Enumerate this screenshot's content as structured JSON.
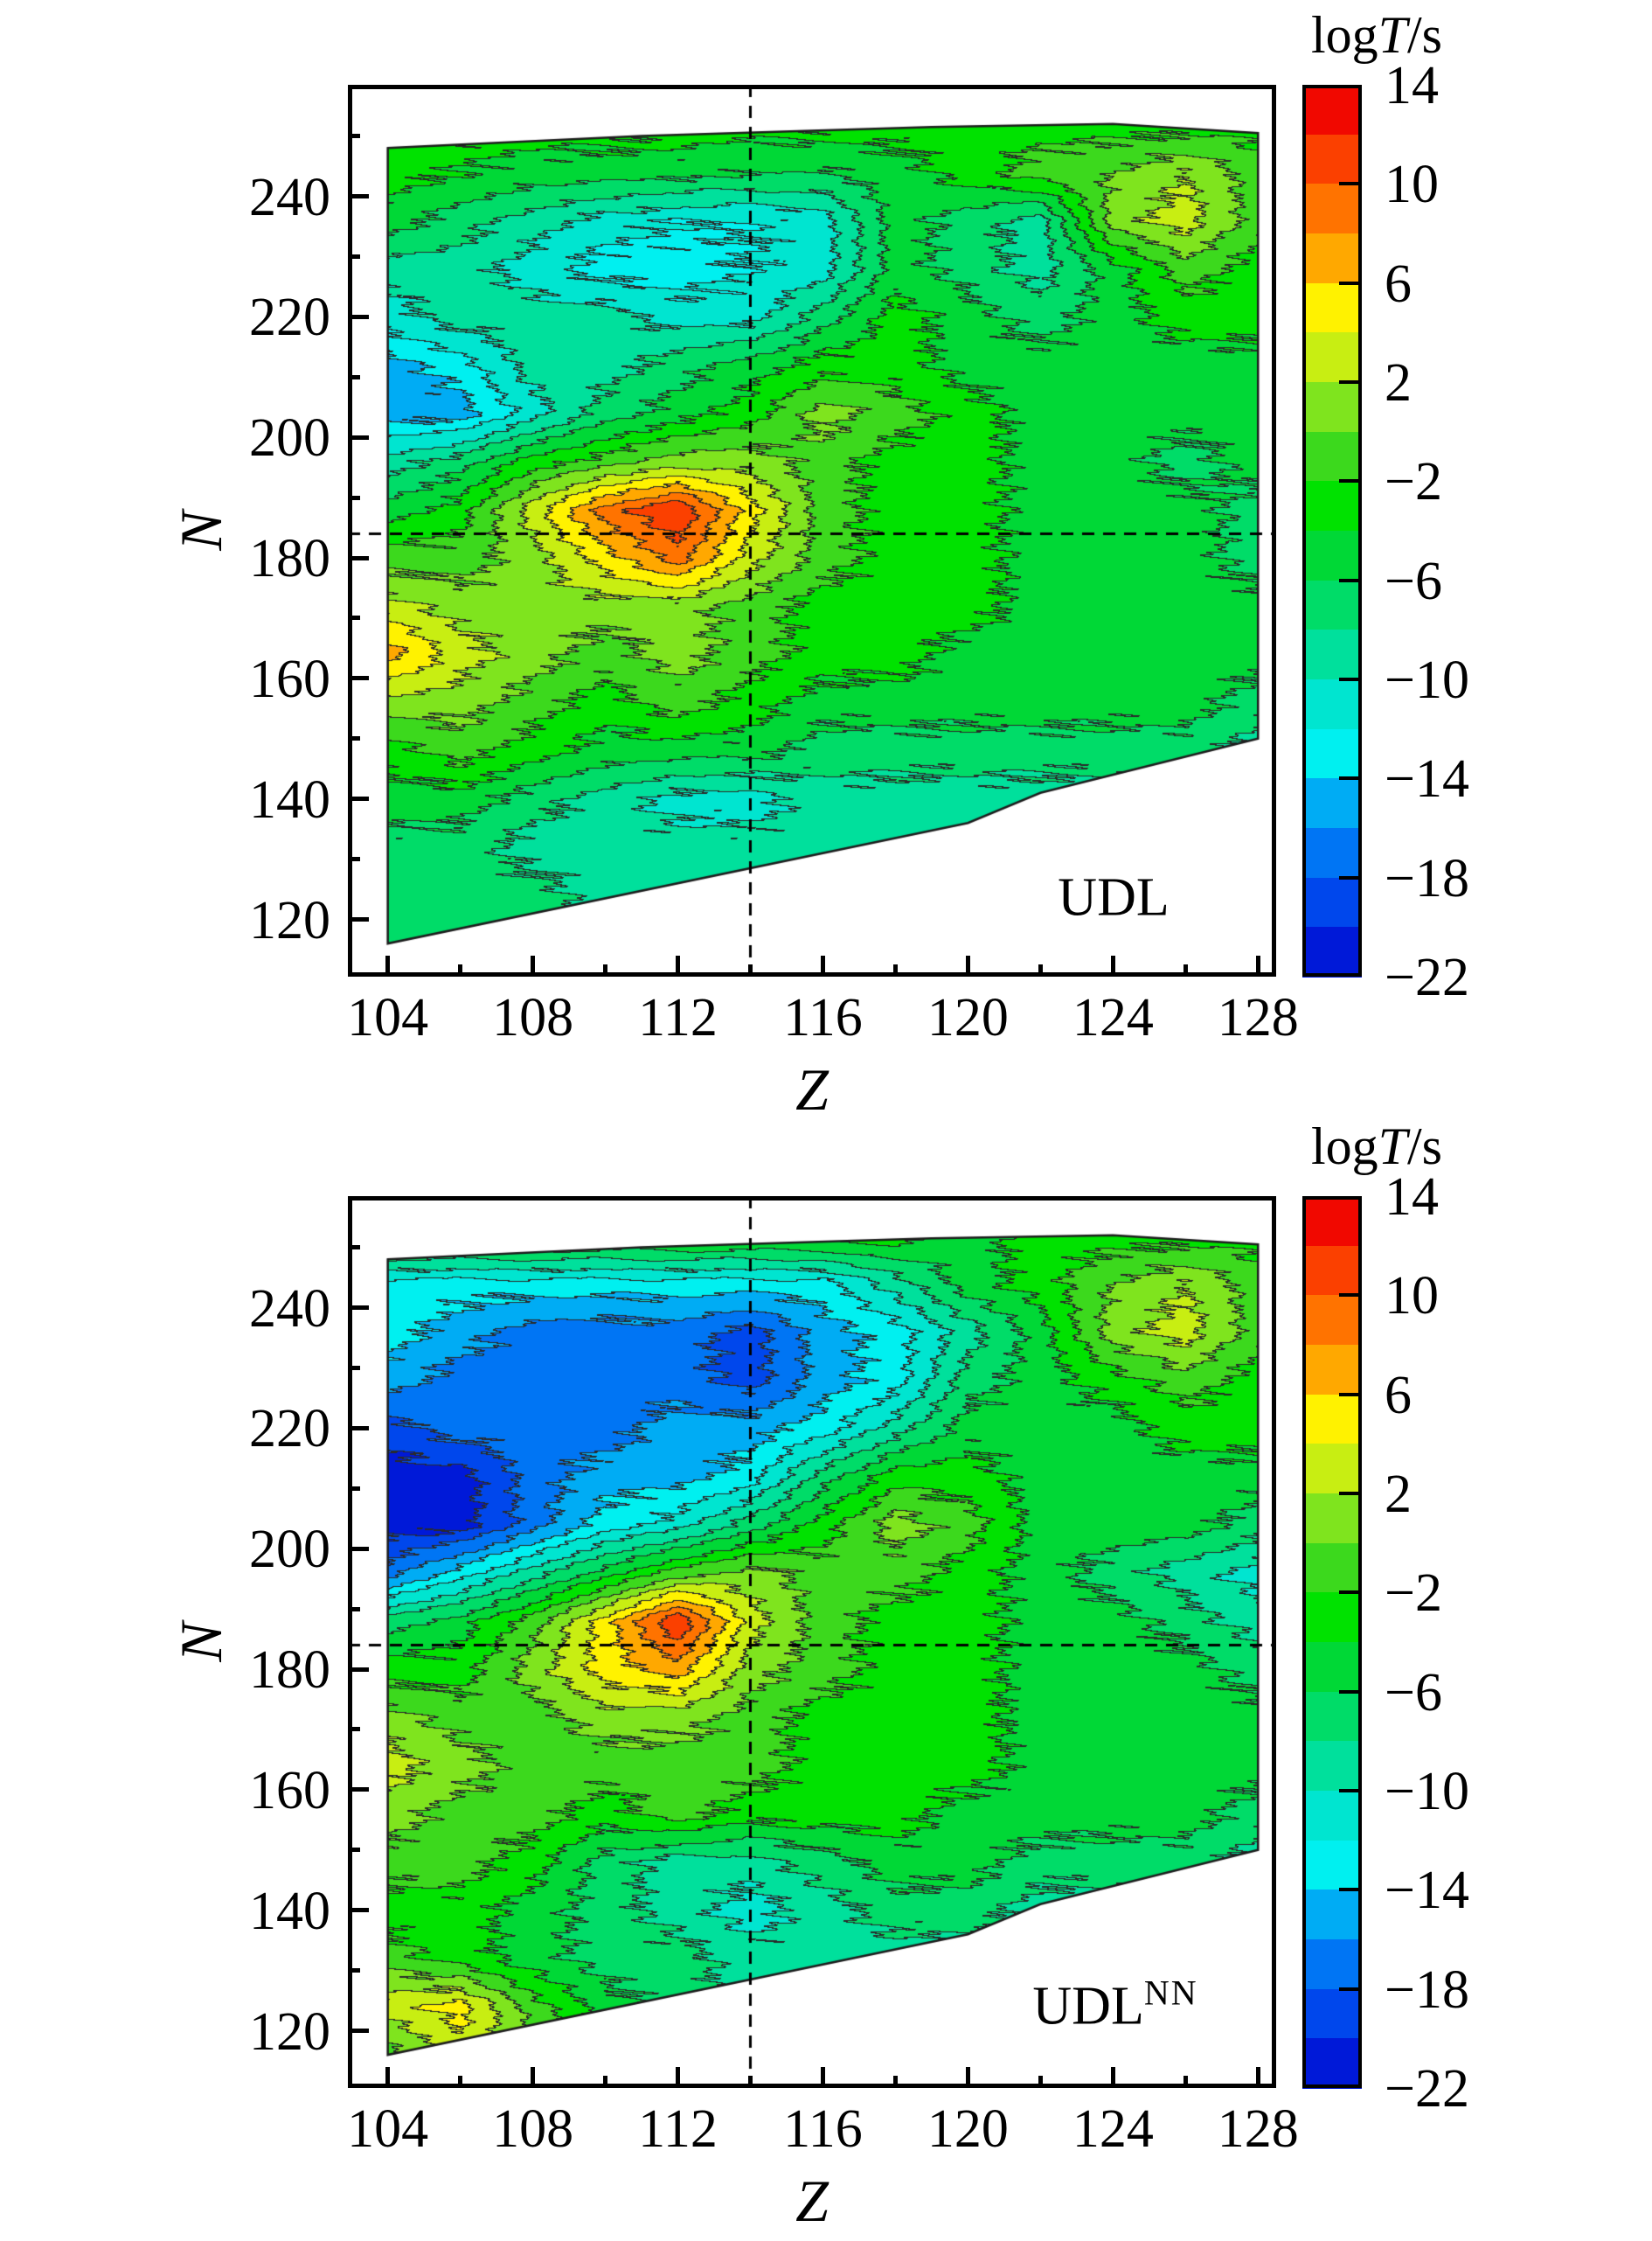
{
  "figure": {
    "description": "Alpha-decay half-life contour maps",
    "background": "#ffffff"
  },
  "colorbar": {
    "title": {
      "log": "log",
      "T": "T",
      "unit": "/s"
    },
    "ticks": [
      14,
      10,
      6,
      2,
      -2,
      -6,
      -10,
      -14,
      -18,
      -22
    ],
    "value_range": [
      -22,
      14
    ]
  },
  "color_scale": {
    "band_step": 2,
    "bands": [
      {
        "min": -22,
        "max": -20,
        "color": "#0019d8"
      },
      {
        "min": -20,
        "max": -18,
        "color": "#0047ec"
      },
      {
        "min": -18,
        "max": -16,
        "color": "#0075f4"
      },
      {
        "min": -16,
        "max": -14,
        "color": "#00acf4"
      },
      {
        "min": -14,
        "max": -12,
        "color": "#00f0f0"
      },
      {
        "min": -12,
        "max": -10,
        "color": "#00e5d0"
      },
      {
        "min": -10,
        "max": -8,
        "color": "#00e09c"
      },
      {
        "min": -8,
        "max": -6,
        "color": "#00dc68"
      },
      {
        "min": -6,
        "max": -4,
        "color": "#00d836"
      },
      {
        "min": -4,
        "max": -2,
        "color": "#00e200"
      },
      {
        "min": -2,
        "max": 0,
        "color": "#3cd91d"
      },
      {
        "min": 0,
        "max": 2,
        "color": "#7fe41e"
      },
      {
        "min": 2,
        "max": 4,
        "color": "#c8ee12"
      },
      {
        "min": 4,
        "max": 6,
        "color": "#fff200"
      },
      {
        "min": 6,
        "max": 8,
        "color": "#ffa800"
      },
      {
        "min": 8,
        "max": 10,
        "color": "#ff7300"
      },
      {
        "min": 10,
        "max": 12,
        "color": "#fb4000"
      },
      {
        "min": 12,
        "max": 14,
        "color": "#f10800"
      }
    ],
    "contour_line_color": "#2a2a2a"
  },
  "panels": [
    {
      "label": "UDL",
      "label_sup": "",
      "x_label": "Z",
      "y_label": "N",
      "x_ticks": [
        104,
        108,
        112,
        116,
        120,
        124,
        128
      ],
      "x_minor_ticks": [
        106,
        110,
        114,
        118,
        122,
        126
      ],
      "y_ticks": [
        120,
        140,
        160,
        180,
        200,
        220,
        240
      ],
      "y_minor_ticks": [
        130,
        150,
        170,
        190,
        210,
        230,
        250
      ]
    },
    {
      "label": "UDL",
      "label_sup": "NN",
      "x_label": "Z",
      "y_label": "N",
      "x_ticks": [
        104,
        108,
        112,
        116,
        120,
        124,
        128
      ],
      "x_minor_ticks": [
        106,
        110,
        114,
        118,
        122,
        126
      ],
      "y_ticks": [
        120,
        140,
        160,
        180,
        200,
        220,
        240
      ],
      "y_minor_ticks": [
        130,
        150,
        170,
        190,
        210,
        230,
        250
      ]
    }
  ],
  "chart_data": [
    {
      "type": "heatmap",
      "title": "UDL",
      "xlabel": "Z",
      "ylabel": "N",
      "zlabel": "logT/s",
      "xlim": [
        102.9,
        128.5
      ],
      "ylim": [
        110.5,
        258.5
      ],
      "zlim": [
        -22,
        14
      ],
      "band_step": 2,
      "dashed_lines": {
        "Z": 114,
        "N": 184
      },
      "region_polygon": [
        [
          104,
          248
        ],
        [
          111,
          250
        ],
        [
          119,
          251.5
        ],
        [
          124,
          252
        ],
        [
          128,
          250.5
        ],
        [
          128,
          150
        ],
        [
          122,
          141
        ],
        [
          120,
          136
        ],
        [
          104,
          116
        ]
      ],
      "grid_Z": [
        104,
        106,
        108,
        110,
        112,
        114,
        116,
        118,
        120,
        122,
        124,
        126,
        128
      ],
      "grid_N": [
        252,
        244,
        236,
        228,
        220,
        212,
        204,
        196,
        188,
        180,
        172,
        164,
        156,
        148,
        140,
        132,
        124,
        116
      ],
      "values_logT": [
        [
          -3,
          -3,
          -3,
          -3,
          -3,
          -3,
          -3,
          -3,
          -3,
          -3,
          -3,
          -3,
          -3
        ],
        [
          -3,
          -4,
          -5,
          -5,
          -5,
          -6,
          -6,
          -5,
          -3,
          -1,
          0,
          2,
          -1
        ],
        [
          -5,
          -7,
          -9,
          -11,
          -12,
          -12,
          -11,
          -5,
          -7,
          -9,
          1,
          3,
          -1
        ],
        [
          -9,
          -9,
          -11,
          -13,
          -13,
          -12,
          -11,
          -5,
          -7,
          -9,
          -5,
          -1,
          -3
        ],
        [
          -11,
          -9,
          -9,
          -9,
          -11,
          -11,
          -7,
          -3,
          -5,
          -7,
          -5,
          -3,
          -3
        ],
        [
          -15,
          -13,
          -9,
          -9,
          -7,
          -5,
          -3,
          -3,
          -5,
          -5,
          -5,
          -5,
          -5
        ],
        [
          -15,
          -15,
          -11,
          -7,
          -5,
          -3,
          1,
          -1,
          -3,
          -5,
          -5,
          -5,
          -5
        ],
        [
          -9,
          -7,
          -3,
          -1,
          1,
          1,
          -1,
          -3,
          -3,
          -5,
          -5,
          -7,
          -5
        ],
        [
          -5,
          -3,
          3,
          9,
          12,
          5,
          -1,
          -3,
          -3,
          -5,
          -5,
          -5,
          -7
        ],
        [
          -1,
          -1,
          1,
          5,
          9,
          3,
          -1,
          -3,
          -3,
          -5,
          -5,
          -5,
          -7
        ],
        [
          3,
          1,
          1,
          1,
          1,
          -1,
          -3,
          -3,
          -3,
          -5,
          -5,
          -5,
          -5
        ],
        [
          7,
          3,
          1,
          -1,
          1,
          -1,
          -3,
          -3,
          -5,
          -5,
          -5,
          -5,
          -5
        ],
        [
          1,
          1,
          -1,
          -3,
          -1,
          -3,
          -5,
          -5,
          -5,
          -5,
          -5,
          -5,
          -7
        ],
        [
          -3,
          -1,
          -3,
          -5,
          -5,
          -5,
          -7,
          -7,
          -7,
          -7,
          -7,
          -7,
          -9
        ],
        [
          -5,
          -5,
          -7,
          -9,
          -11,
          -11,
          -9,
          -9,
          -9,
          -9,
          -9,
          -9,
          -9
        ],
        [
          -7,
          -7,
          -9,
          -9,
          -9,
          -9,
          -9,
          -9,
          -9,
          -9,
          -9,
          -9,
          -9
        ],
        [
          -7,
          -7,
          -7,
          -9,
          -9,
          -9,
          -9,
          -9,
          -9,
          -9,
          -9,
          -9,
          -9
        ],
        [
          -7,
          -7,
          -7,
          -7,
          -9,
          -9,
          -9,
          -9,
          -9,
          -9,
          -9,
          -9,
          -9
        ]
      ],
      "annotations": [
        {
          "text": "UDL",
          "Z": 124,
          "N": 124
        }
      ]
    },
    {
      "type": "heatmap",
      "title": "UDL^NN",
      "xlabel": "Z",
      "ylabel": "N",
      "zlabel": "logT/s",
      "xlim": [
        102.9,
        128.5
      ],
      "ylim": [
        110.5,
        258.5
      ],
      "zlim": [
        -22,
        14
      ],
      "band_step": 2,
      "dashed_lines": {
        "Z": 114,
        "N": 184
      },
      "region_polygon": [
        [
          104,
          248
        ],
        [
          111,
          250
        ],
        [
          119,
          251.5
        ],
        [
          124,
          252
        ],
        [
          128,
          250.5
        ],
        [
          128,
          150
        ],
        [
          122,
          141
        ],
        [
          120,
          136
        ],
        [
          104,
          116
        ]
      ],
      "grid_Z": [
        104,
        106,
        108,
        110,
        112,
        114,
        116,
        118,
        120,
        122,
        124,
        126,
        128
      ],
      "grid_N": [
        252,
        244,
        236,
        228,
        220,
        212,
        204,
        196,
        188,
        180,
        172,
        164,
        156,
        148,
        140,
        132,
        124,
        116
      ],
      "values_logT": [
        [
          -3,
          -3,
          -3,
          -3,
          -3,
          -3,
          -3,
          -3,
          -5,
          -3,
          -3,
          -3,
          -3
        ],
        [
          -13,
          -13,
          -13,
          -13,
          -13,
          -13,
          -13,
          -9,
          -5,
          -3,
          0,
          2,
          -1
        ],
        [
          -13,
          -15,
          -17,
          -17,
          -17,
          -19,
          -15,
          -13,
          -9,
          -5,
          1,
          3,
          -1
        ],
        [
          -15,
          -17,
          -17,
          -17,
          -17,
          -19,
          -15,
          -13,
          -7,
          -5,
          -3,
          -1,
          -3
        ],
        [
          -19,
          -17,
          -17,
          -17,
          -15,
          -15,
          -13,
          -9,
          -5,
          -5,
          -5,
          -3,
          -3
        ],
        [
          -21,
          -21,
          -17,
          -15,
          -15,
          -13,
          -7,
          -3,
          -3,
          -5,
          -5,
          -5,
          -5
        ],
        [
          -21,
          -21,
          -17,
          -13,
          -11,
          -7,
          -3,
          1,
          -1,
          -5,
          -5,
          -5,
          -7
        ],
        [
          -17,
          -13,
          -9,
          -5,
          -1,
          1,
          -1,
          -1,
          -3,
          -5,
          -7,
          -9,
          -11
        ],
        [
          -7,
          -5,
          -1,
          5,
          12,
          3,
          -1,
          -3,
          -3,
          -5,
          -5,
          -7,
          -9
        ],
        [
          -3,
          -3,
          1,
          5,
          7,
          1,
          -1,
          -3,
          -3,
          -5,
          -5,
          -5,
          -7
        ],
        [
          1,
          -1,
          -1,
          1,
          1,
          -1,
          -3,
          -3,
          -3,
          -5,
          -5,
          -5,
          -5
        ],
        [
          3,
          1,
          -1,
          -1,
          -1,
          -1,
          -3,
          -3,
          -3,
          -5,
          -5,
          -5,
          -5
        ],
        [
          1,
          -1,
          -1,
          -3,
          -1,
          -3,
          -3,
          -3,
          -5,
          -5,
          -5,
          -5,
          -7
        ],
        [
          -1,
          -1,
          -3,
          -7,
          -9,
          -9,
          -7,
          -5,
          -5,
          -7,
          -7,
          -7,
          -9
        ],
        [
          -3,
          -3,
          -5,
          -7,
          -9,
          -11,
          -9,
          -7,
          -7,
          -9,
          -9,
          -9,
          -9
        ],
        [
          -1,
          -3,
          -5,
          -7,
          -7,
          -9,
          -9,
          -9,
          -9,
          -9,
          -9,
          -9,
          -9
        ],
        [
          3,
          5,
          -1,
          -5,
          -7,
          -9,
          -9,
          -9,
          -9,
          -9,
          -9,
          -9,
          -9
        ],
        [
          -1,
          3,
          1,
          -3,
          -7,
          -9,
          -9,
          -9,
          -9,
          -9,
          -9,
          -9,
          -9
        ]
      ],
      "annotations": [
        {
          "text": "UDL^NN",
          "Z": 124,
          "N": 124
        }
      ]
    }
  ]
}
